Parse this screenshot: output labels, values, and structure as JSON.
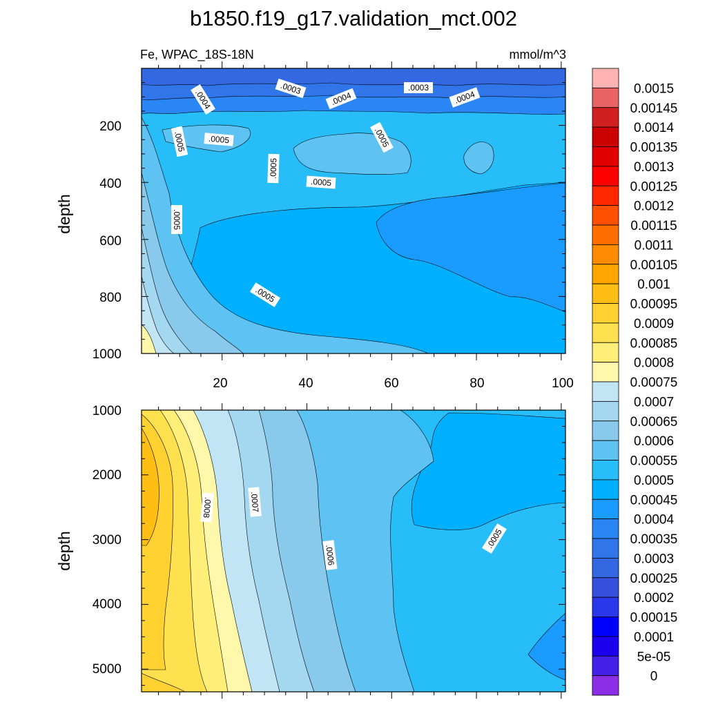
{
  "figure": {
    "title": "b1850.f19_g17.validation_mct.002",
    "left_subtitle": "Fe, WPAC_18S-18N",
    "right_subtitle": "mmol/m^3"
  },
  "chart_data": [
    {
      "type": "heatmap",
      "panel": "upper",
      "variable": "Fe",
      "region": "WPAC_18S-18N",
      "units": "mmol/m^3",
      "xlabel": "",
      "ylabel": "depth",
      "xlim": [
        1,
        101
      ],
      "ylim": [
        1000,
        0
      ],
      "x_ticks": [
        "20",
        "40",
        "60",
        "80",
        "100"
      ],
      "y_ticks": [
        "200",
        "400",
        "600",
        "800",
        "1000"
      ],
      "contour_labels": [
        ".0004",
        ".0003",
        ".0004",
        ".0003",
        ".0004",
        ".0005",
        ".0005",
        ".0005",
        ".0005",
        ".0005",
        ".0005",
        ".0005"
      ],
      "depth_profile": [
        {
          "depth": 20,
          "value": 0.00022
        },
        {
          "depth": 100,
          "value": 0.00038
        },
        {
          "depth": 200,
          "value": 0.00048
        },
        {
          "depth": 400,
          "value": 0.00048
        },
        {
          "depth": 600,
          "value": 0.00047
        },
        {
          "depth": 800,
          "value": 0.00047
        },
        {
          "depth": 1000,
          "value": 0.0005
        }
      ]
    },
    {
      "type": "heatmap",
      "panel": "lower",
      "xlabel": "",
      "ylabel": "depth",
      "xlim": [
        1,
        101
      ],
      "ylim": [
        5350,
        1000
      ],
      "y_ticks": [
        "1000",
        "2000",
        "3000",
        "4000",
        "5000"
      ],
      "contour_labels": [
        ".0008",
        ".0007",
        ".0006",
        ".0005"
      ],
      "west_edge_profile": [
        {
          "depth": 1000,
          "value": 0.0008
        },
        {
          "depth": 2000,
          "value": 0.00097
        },
        {
          "depth": 3000,
          "value": 0.00092
        },
        {
          "depth": 4000,
          "value": 0.00088
        },
        {
          "depth": 5000,
          "value": 0.00087
        }
      ]
    }
  ],
  "colorbar": {
    "labels": [
      "0.0015",
      "0.00145",
      "0.0014",
      "0.00135",
      "0.0013",
      "0.00125",
      "0.0012",
      "0.00115",
      "0.0011",
      "0.00105",
      "0.001",
      "0.00095",
      "0.0009",
      "0.00085",
      "0.0008",
      "0.00075",
      "0.0007",
      "0.00065",
      "0.0006",
      "0.00055",
      "0.0005",
      "0.00045",
      "0.0004",
      "0.00035",
      "0.0003",
      "0.00025",
      "0.0002",
      "0.00015",
      "0.0001",
      "5e-05",
      "0"
    ],
    "colors": [
      "#ffb3b3",
      "#e86464",
      "#d22020",
      "#cc0000",
      "#e00000",
      "#ff0000",
      "#ff2800",
      "#ff5000",
      "#ff6e00",
      "#ff8c00",
      "#ffa500",
      "#ffbe14",
      "#ffd232",
      "#ffe150",
      "#ffee78",
      "#fff8aa",
      "#c2e5f5",
      "#a4d7f0",
      "#88c9ec",
      "#5ec3f3",
      "#26bdf8",
      "#00b0ff",
      "#1a9bff",
      "#2a86f5",
      "#3076ea",
      "#3468e3",
      "#3550dc",
      "#2a38ec",
      "#0000ff",
      "#1a00ee",
      "#4420e6",
      "#8c2ee6"
    ]
  }
}
